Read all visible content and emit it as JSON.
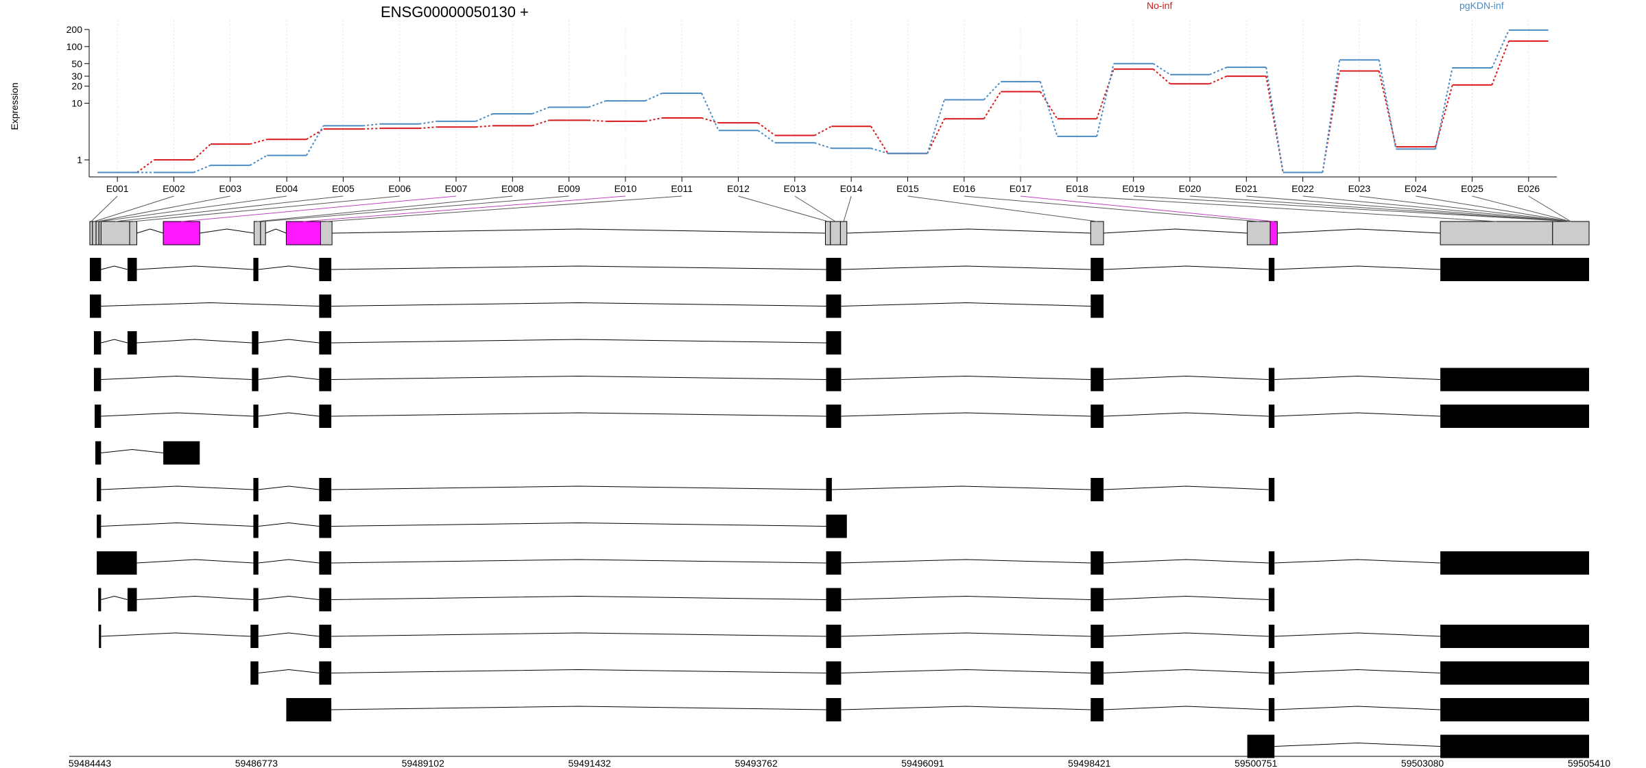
{
  "chart_data": {
    "type": "line",
    "title": "ENSG00000050130 +",
    "ylabel": "Expression",
    "yscale": "log",
    "ylim": [
      0.5,
      250
    ],
    "yticks": [
      1,
      10,
      20,
      30,
      50,
      100,
      200
    ],
    "ytick_labels": [
      "1",
      "10",
      "20",
      "30",
      "50",
      "100",
      "200"
    ],
    "grid": "vertical",
    "categories": [
      "E001",
      "E002",
      "E003",
      "E004",
      "E005",
      "E006",
      "E007",
      "E008",
      "E009",
      "E010",
      "E011",
      "E012",
      "E013",
      "E014",
      "E015",
      "E016",
      "E017",
      "E018",
      "E019",
      "E020",
      "E021",
      "E022",
      "E023",
      "E024",
      "E025",
      "E026"
    ],
    "series": [
      {
        "name": "No-inf",
        "color": "#d7191c",
        "values": [
          0.6,
          1.0,
          1.9,
          2.3,
          3.5,
          3.6,
          3.8,
          4.0,
          5.0,
          4.8,
          5.5,
          4.5,
          2.7,
          3.9,
          1.3,
          5.3,
          16,
          5.3,
          40,
          22,
          30,
          0.6,
          37,
          1.7,
          21,
          125
        ],
        "color_note": "red"
      },
      {
        "name": "pgKDN-inf",
        "color": "#4a8bc4",
        "values": [
          0.6,
          0.6,
          0.8,
          1.2,
          4.0,
          4.3,
          4.8,
          6.5,
          8.5,
          11,
          15,
          3.3,
          2.0,
          1.6,
          1.3,
          11.5,
          24,
          2.6,
          50,
          32,
          43,
          0.6,
          58,
          1.55,
          42,
          195
        ],
        "color_note": "blue"
      }
    ],
    "gene_model": {
      "axis_ticks": [
        "59484443",
        "59486773",
        "59489102",
        "59491432",
        "59493762",
        "59496091",
        "59498421",
        "59500751",
        "59503080",
        "59505410"
      ],
      "range": [
        59484443,
        59505410
      ],
      "highlight_color": "#ff19ff",
      "exon_fill": "#cccccc",
      "transcript_fill": "#000000",
      "collapsed_bins": [
        [
          59484443,
          59484480
        ],
        [
          59484480,
          59484530
        ],
        [
          59484530,
          59484570
        ],
        [
          59484570,
          59484600
        ],
        [
          59484600,
          59485000
        ],
        [
          59485000,
          59485100
        ],
        [
          59485470,
          59485980
        ],
        [
          59486740,
          59486830
        ],
        [
          59486830,
          59486900
        ],
        [
          59487190,
          59487670
        ],
        [
          59487670,
          59487830
        ],
        [
          59494730,
          59494800
        ],
        [
          59494800,
          59494940
        ],
        [
          59494940,
          59495030
        ],
        [
          59498440,
          59498620
        ],
        [
          59500630,
          59500950
        ],
        [
          59500950,
          59501050
        ],
        [
          59503330,
          59504900
        ],
        [
          59504900,
          59505410
        ]
      ],
      "highlighted_bins": [
        6,
        9,
        16
      ],
      "transcripts": [
        [
          [
            59484443,
            59484600
          ],
          [
            59484970,
            59485100
          ],
          [
            59486730,
            59486800
          ],
          [
            59487650,
            59487820
          ],
          [
            59494740,
            59494950
          ],
          [
            59498440,
            59498620
          ],
          [
            59500930,
            59501010
          ],
          [
            59503330,
            59505410
          ]
        ],
        [
          [
            59484443,
            59484600
          ],
          [
            59487650,
            59487820
          ],
          [
            59494740,
            59494950
          ],
          [
            59498440,
            59498620
          ]
        ],
        [
          [
            59484500,
            59484600
          ],
          [
            59484970,
            59485100
          ],
          [
            59486710,
            59486800
          ],
          [
            59487650,
            59487820
          ],
          [
            59494740,
            59494950
          ]
        ],
        [
          [
            59484500,
            59484600
          ],
          [
            59486710,
            59486800
          ],
          [
            59487650,
            59487820
          ],
          [
            59494740,
            59494950
          ],
          [
            59498440,
            59498620
          ],
          [
            59500930,
            59501010
          ],
          [
            59503330,
            59505410
          ]
        ],
        [
          [
            59484510,
            59484600
          ],
          [
            59486730,
            59486800
          ],
          [
            59487650,
            59487820
          ],
          [
            59494740,
            59494950
          ],
          [
            59498440,
            59498620
          ],
          [
            59500930,
            59501010
          ],
          [
            59503330,
            59505410
          ]
        ],
        [
          [
            59484520,
            59484600
          ],
          [
            59485470,
            59485980
          ]
        ],
        [
          [
            59484540,
            59484600
          ],
          [
            59486730,
            59486800
          ],
          [
            59487650,
            59487820
          ],
          [
            59494740,
            59494820
          ],
          [
            59498440,
            59498620
          ],
          [
            59500930,
            59501010
          ]
        ],
        [
          [
            59484540,
            59484600
          ],
          [
            59486730,
            59486800
          ],
          [
            59487650,
            59487820
          ],
          [
            59494740,
            59495030
          ]
        ],
        [
          [
            59484540,
            59485100
          ],
          [
            59486730,
            59486800
          ],
          [
            59487650,
            59487820
          ],
          [
            59494740,
            59494950
          ],
          [
            59498440,
            59498620
          ],
          [
            59500930,
            59501010
          ],
          [
            59503330,
            59505410
          ]
        ],
        [
          [
            59484560,
            59484600
          ],
          [
            59484970,
            59485100
          ],
          [
            59486730,
            59486800
          ],
          [
            59487650,
            59487820
          ],
          [
            59494740,
            59494950
          ],
          [
            59498440,
            59498620
          ],
          [
            59500930,
            59501010
          ]
        ],
        [
          [
            59484570,
            59484600
          ],
          [
            59486690,
            59486800
          ],
          [
            59487650,
            59487820
          ],
          [
            59494740,
            59494950
          ],
          [
            59498440,
            59498620
          ],
          [
            59500930,
            59501010
          ],
          [
            59503330,
            59505410
          ]
        ],
        [
          [
            59486690,
            59486800
          ],
          [
            59487650,
            59487820
          ],
          [
            59494740,
            59494950
          ],
          [
            59498440,
            59498620
          ],
          [
            59500930,
            59501010
          ],
          [
            59503330,
            59505410
          ]
        ],
        [
          [
            59487190,
            59487820
          ],
          [
            59494740,
            59494950
          ],
          [
            59498440,
            59498620
          ],
          [
            59500930,
            59501010
          ],
          [
            59503330,
            59505410
          ]
        ],
        [
          [
            59500630,
            59501010
          ],
          [
            59503330,
            59505410
          ]
        ]
      ]
    }
  }
}
